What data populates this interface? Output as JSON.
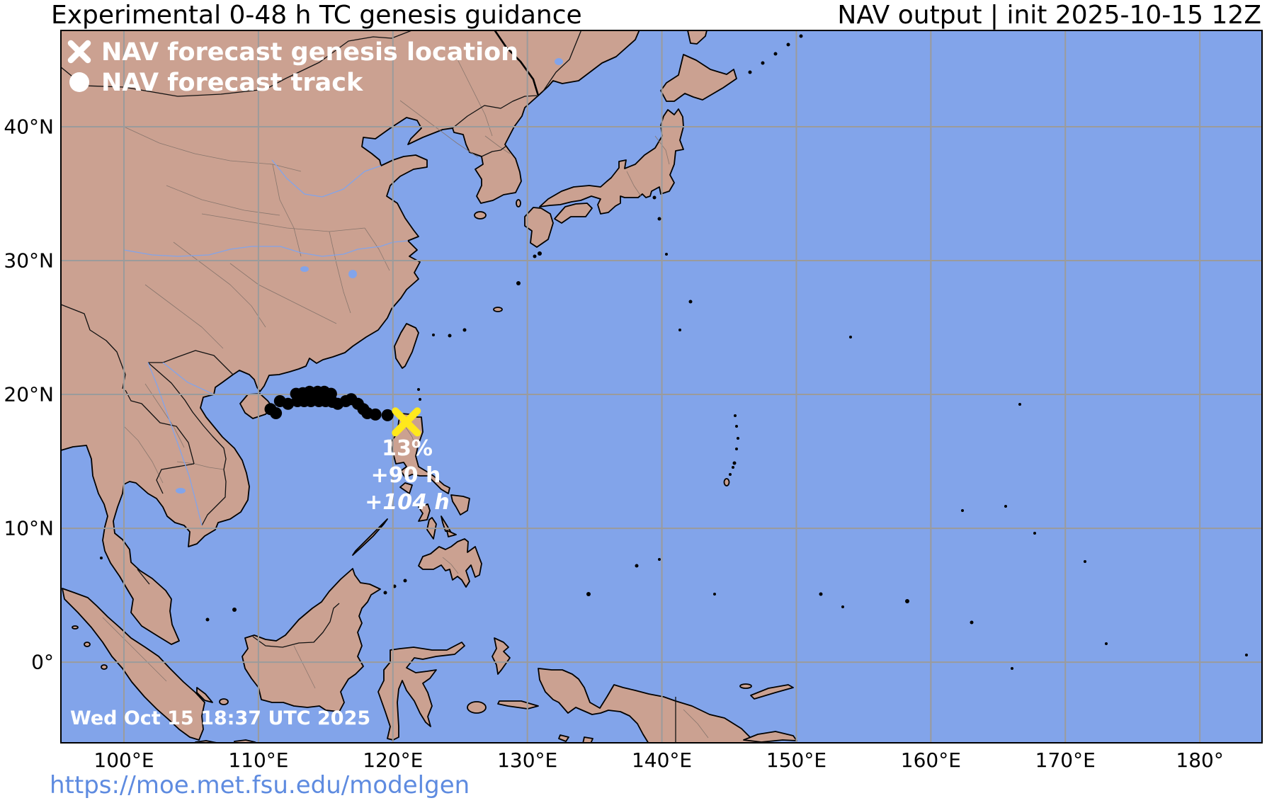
{
  "header": {
    "title_left": "Experimental 0-48 h TC genesis guidance",
    "title_right": "NAV output | init 2025-10-15 12Z"
  },
  "legend": {
    "genesis_label": "NAV forecast genesis location",
    "track_label": "NAV forecast track",
    "genesis_icon": "x-marker",
    "track_icon": "filled-circle"
  },
  "annotation": {
    "probability": "13%",
    "genesis_time": "+90 h",
    "track_end_time": "+104 h"
  },
  "timestamp": "Wed Oct 15 18:37 UTC 2025",
  "url": "https://moe.met.fsu.edu/modelgen",
  "axes": {
    "lon_ticks": [
      {
        "lon": 100,
        "label": "100°E"
      },
      {
        "lon": 110,
        "label": "110°E"
      },
      {
        "lon": 120,
        "label": "120°E"
      },
      {
        "lon": 130,
        "label": "130°E"
      },
      {
        "lon": 140,
        "label": "140°E"
      },
      {
        "lon": 150,
        "label": "150°E"
      },
      {
        "lon": 160,
        "label": "160°E"
      },
      {
        "lon": 170,
        "label": "170°E"
      },
      {
        "lon": 180,
        "label": "180°"
      }
    ],
    "lat_ticks": [
      {
        "lat": 40,
        "label": "40°N"
      },
      {
        "lat": 30,
        "label": "30°N"
      },
      {
        "lat": 20,
        "label": "20°N"
      },
      {
        "lat": 10,
        "label": "10°N"
      },
      {
        "lat": 0,
        "label": "0°"
      }
    ]
  },
  "map": {
    "extent": {
      "lon_min": 95.26,
      "lon_max": 184.68,
      "lat_min": -6.08,
      "lat_max": 47.25
    },
    "genesis": {
      "lon": 121.0,
      "lat": 17.95
    },
    "track": [
      [
        110.9,
        18.9
      ],
      [
        111.3,
        18.6
      ],
      [
        111.6,
        19.5
      ],
      [
        112.2,
        19.3
      ],
      [
        112.8,
        20.05
      ],
      [
        113.3,
        20.1
      ],
      [
        113.8,
        20.2
      ],
      [
        114.4,
        20.2
      ],
      [
        114.9,
        20.2
      ],
      [
        115.4,
        20.05
      ],
      [
        112.9,
        19.5
      ],
      [
        113.4,
        19.5
      ],
      [
        113.9,
        19.5
      ],
      [
        114.5,
        19.5
      ],
      [
        115.0,
        19.5
      ],
      [
        115.5,
        19.45
      ],
      [
        115.9,
        19.3
      ],
      [
        116.5,
        19.5
      ],
      [
        116.9,
        19.65
      ],
      [
        117.4,
        19.3
      ],
      [
        117.8,
        18.9
      ],
      [
        118.1,
        18.6
      ],
      [
        118.7,
        18.5
      ],
      [
        119.6,
        18.45
      ]
    ]
  },
  "colors": {
    "ocean": "#82a4ea",
    "land": "#cba191",
    "grid": "#9b9b9b",
    "track": "#000000",
    "genesis_marker": "#ffe81c",
    "overlay_text": "#ffffff",
    "title_text": "#000000",
    "url_link": "#5e8be0"
  }
}
